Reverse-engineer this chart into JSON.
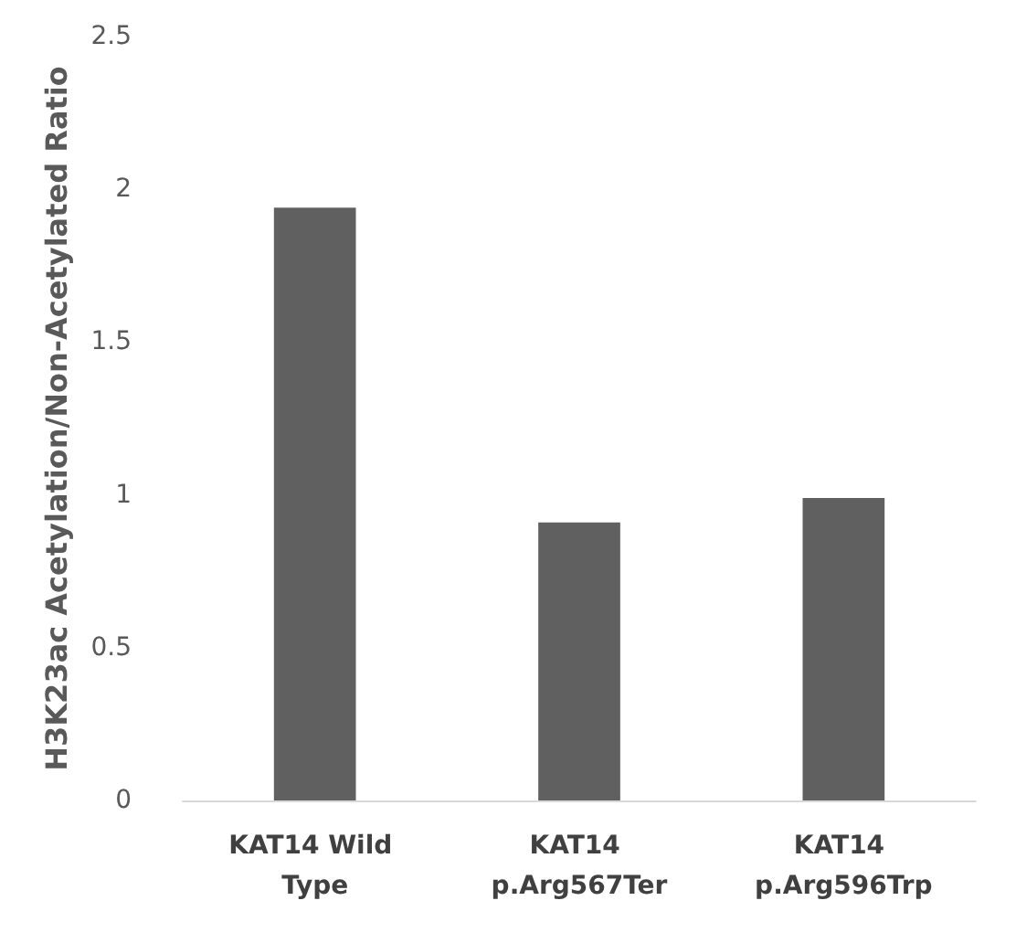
{
  "chart_data": {
    "type": "bar",
    "ylabel": "H3K23ac Acetylation/Non-Acetylated Ratio",
    "categories": [
      "KAT14 Wild Type",
      "KAT14 p.Arg567Ter",
      "KAT14 p.Arg596Trp"
    ],
    "values": [
      1.94,
      0.91,
      0.99
    ],
    "color": "#5f605f",
    "ylim": [
      0,
      2.5
    ],
    "yticks": [
      0,
      0.5,
      1,
      1.5,
      2,
      2.5
    ],
    "grid": false
  }
}
